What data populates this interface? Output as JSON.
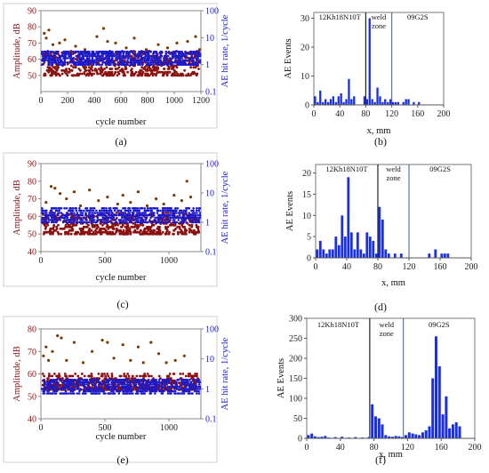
{
  "chart_data": [
    {
      "panel": "(a)",
      "type": "scatter",
      "xlabel": "cycle number",
      "ylabel_left": "Amplitude, dB",
      "ylabel_right": "AE hit rate, 1/cycle",
      "xticks": [
        "0",
        "200",
        "400",
        "600",
        "800",
        "1000",
        "1200"
      ],
      "yticks_left": [
        "50",
        "60",
        "70",
        "80",
        "90"
      ],
      "yticks_right": [
        "0.1",
        "1",
        "10",
        "100"
      ],
      "xlim": [
        0,
        1200
      ],
      "ylim_left": [
        40,
        90
      ],
      "ylim_right_log": [
        0.1,
        100
      ],
      "amplitude_band": [
        50,
        65
      ],
      "hit_rate_band": [
        1,
        3
      ],
      "sparse_points": [
        [
          25,
          76
        ],
        [
          40,
          73
        ],
        [
          60,
          78
        ],
        [
          90,
          69
        ],
        [
          140,
          70
        ],
        [
          180,
          72
        ],
        [
          260,
          68
        ],
        [
          330,
          66
        ],
        [
          420,
          74
        ],
        [
          470,
          79
        ],
        [
          500,
          71
        ],
        [
          560,
          70
        ],
        [
          640,
          67
        ],
        [
          700,
          73
        ],
        [
          790,
          66
        ],
        [
          880,
          69
        ],
        [
          950,
          67
        ],
        [
          1020,
          70
        ],
        [
          1100,
          71
        ],
        [
          1160,
          74
        ],
        [
          1190,
          66
        ]
      ]
    },
    {
      "panel": "(b)",
      "type": "bar",
      "xlabel": "x, mm",
      "ylabel": "AE Events",
      "xticks": [
        "0",
        "40",
        "80",
        "120",
        "160",
        "200"
      ],
      "yticks": [
        "0",
        "10",
        "20",
        "30"
      ],
      "xlim": [
        0,
        200
      ],
      "ylim": [
        0,
        32
      ],
      "zones": [
        "12Kh18N10T",
        "weld zone",
        "09G2S"
      ],
      "zone_boundaries": [
        80,
        120
      ],
      "x": [
        2,
        6,
        10,
        14,
        18,
        22,
        26,
        30,
        34,
        38,
        42,
        46,
        50,
        54,
        58,
        62,
        78,
        82,
        86,
        90,
        94,
        98,
        102,
        106,
        110,
        114,
        118,
        122,
        126,
        130,
        138,
        142,
        146,
        154,
        162
      ],
      "values": [
        3,
        1,
        5,
        1,
        2,
        1,
        2,
        3,
        1,
        3,
        4,
        1,
        2,
        9,
        2,
        3,
        3,
        2,
        30,
        2,
        1,
        6,
        3,
        1,
        2,
        1,
        2,
        1,
        1,
        1,
        1,
        2,
        2,
        1,
        1
      ]
    },
    {
      "panel": "(c)",
      "type": "scatter",
      "xlabel": "cycle number",
      "ylabel_left": "Amplitude, dB",
      "ylabel_right": "AE hit rate, 1/cycle",
      "xticks": [
        "0",
        "500",
        "1000"
      ],
      "yticks_left": [
        "40",
        "50",
        "60",
        "70",
        "80",
        "90"
      ],
      "yticks_right": [
        "0.1",
        "1",
        "10",
        "100"
      ],
      "xlim": [
        0,
        1250
      ],
      "ylim_left": [
        40,
        90
      ],
      "ylim_right_log": [
        0.1,
        100
      ],
      "amplitude_band": [
        50,
        62
      ],
      "hit_rate_band": [
        1,
        3
      ],
      "sparse_points": [
        [
          40,
          68
        ],
        [
          80,
          77
        ],
        [
          110,
          76
        ],
        [
          150,
          73
        ],
        [
          200,
          70
        ],
        [
          260,
          74
        ],
        [
          310,
          66
        ],
        [
          380,
          75
        ],
        [
          450,
          69
        ],
        [
          520,
          71
        ],
        [
          600,
          67
        ],
        [
          640,
          72
        ],
        [
          700,
          68
        ],
        [
          760,
          74
        ],
        [
          830,
          66
        ],
        [
          900,
          70
        ],
        [
          960,
          67
        ],
        [
          1040,
          72
        ],
        [
          1100,
          69
        ],
        [
          1140,
          80
        ],
        [
          1170,
          71
        ]
      ]
    },
    {
      "panel": "(d)",
      "type": "bar",
      "xlabel": "x, mm",
      "ylabel": "AE Events",
      "xticks": [
        "0",
        "40",
        "80",
        "120",
        "160",
        "200"
      ],
      "yticks": [
        "0",
        "5",
        "10",
        "15",
        "20"
      ],
      "xlim": [
        0,
        200
      ],
      "ylim": [
        0,
        22
      ],
      "zones": [
        "12Kh18N10T",
        "weld zone",
        "09G2S"
      ],
      "zone_boundaries": [
        80,
        120
      ],
      "x": [
        2,
        6,
        10,
        14,
        18,
        22,
        26,
        30,
        34,
        38,
        42,
        46,
        50,
        54,
        58,
        62,
        66,
        70,
        74,
        78,
        82,
        86,
        90,
        94,
        102,
        110,
        146,
        154,
        162,
        166,
        170
      ],
      "values": [
        2,
        4,
        2,
        1,
        2,
        2,
        5,
        3,
        10,
        5,
        19,
        6,
        2,
        6,
        2,
        1,
        6,
        5,
        4,
        1,
        12,
        9,
        2,
        1,
        1,
        1,
        1,
        2,
        1,
        1,
        1
      ]
    },
    {
      "panel": "(e)",
      "type": "scatter",
      "xlabel": "cycle number",
      "ylabel_left": "Amplitude, dB",
      "ylabel_right": "AE hit rate, 1/cycle",
      "xticks": [
        "0",
        "500",
        "1000"
      ],
      "yticks_left": [
        "40",
        "50",
        "60",
        "70",
        "80"
      ],
      "yticks_right": [
        "0.1",
        "1",
        "10",
        "100"
      ],
      "xlim": [
        0,
        1250
      ],
      "ylim_left": [
        40,
        80
      ],
      "ylim_right_log": [
        0.1,
        100
      ],
      "amplitude_band": [
        53,
        60
      ],
      "hit_rate_band": [
        0.7,
        2
      ],
      "sparse_points": [
        [
          20,
          68
        ],
        [
          40,
          72
        ],
        [
          60,
          66
        ],
        [
          90,
          70
        ],
        [
          130,
          77
        ],
        [
          160,
          76
        ],
        [
          200,
          66
        ],
        [
          260,
          74
        ],
        [
          330,
          65
        ],
        [
          400,
          70
        ],
        [
          480,
          75
        ],
        [
          520,
          74
        ],
        [
          570,
          67
        ],
        [
          640,
          73
        ],
        [
          700,
          66
        ],
        [
          760,
          72
        ],
        [
          800,
          65
        ],
        [
          860,
          74
        ],
        [
          920,
          69
        ],
        [
          980,
          65
        ],
        [
          1050,
          66
        ],
        [
          1120,
          68
        ]
      ]
    },
    {
      "panel": "(f)",
      "type": "bar",
      "xlabel": "x, mm",
      "ylabel": "AE Events",
      "xticks": [
        "0",
        "40",
        "80",
        "120",
        "160",
        "200"
      ],
      "yticks": [
        "0",
        "50",
        "100",
        "150",
        "200",
        "250",
        "300"
      ],
      "xlim": [
        0,
        200
      ],
      "ylim": [
        0,
        300
      ],
      "zones": [
        "12Kh18N10T",
        "weld zone",
        "09G2S"
      ],
      "zone_boundaries": [
        75,
        115
      ],
      "x": [
        2,
        6,
        10,
        14,
        18,
        22,
        26,
        34,
        42,
        50,
        58,
        66,
        74,
        78,
        82,
        86,
        90,
        94,
        98,
        102,
        106,
        110,
        114,
        118,
        122,
        126,
        130,
        134,
        138,
        142,
        146,
        150,
        154,
        158,
        162,
        166,
        170,
        174,
        178,
        182
      ],
      "values": [
        8,
        12,
        5,
        3,
        4,
        6,
        2,
        3,
        4,
        2,
        3,
        2,
        3,
        85,
        55,
        50,
        35,
        8,
        5,
        4,
        6,
        5,
        3,
        8,
        15,
        12,
        10,
        8,
        15,
        20,
        30,
        150,
        255,
        180,
        60,
        105,
        25,
        35,
        40,
        30
      ]
    }
  ],
  "colors": {
    "amplitude": "#8b1010",
    "amplitude_sparse": "#7a3a00",
    "hit_rate": "#1a1acc",
    "bar": "#1a2fe0",
    "axis": "#666666"
  }
}
